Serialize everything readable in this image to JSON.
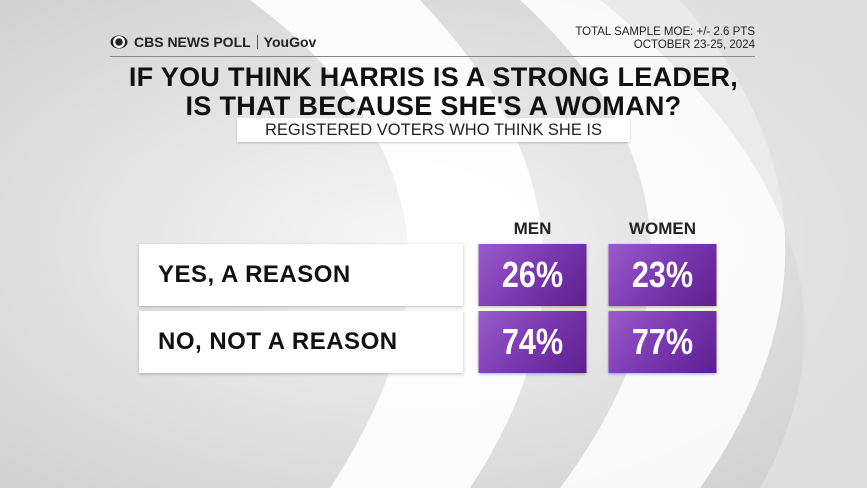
{
  "header": {
    "brand": "CBS NEWS POLL",
    "partner": "YouGov",
    "moe": "TOTAL SAMPLE MOE: +/- 2.6 PTS",
    "dates": "OCTOBER 23-25, 2024"
  },
  "title": [
    "IF YOU THINK HARRIS IS A STRONG LEADER,",
    "IS THAT BECAUSE SHE'S A WOMAN?"
  ],
  "subtitle": "REGISTERED VOTERS WHO THINK SHE IS",
  "table": {
    "columns": [
      "MEN",
      "WOMEN"
    ],
    "rows": [
      [
        "YES, A REASON",
        "26%",
        "23%"
      ],
      [
        "NO, NOT A REASON",
        "74%",
        "77%"
      ]
    ]
  }
}
